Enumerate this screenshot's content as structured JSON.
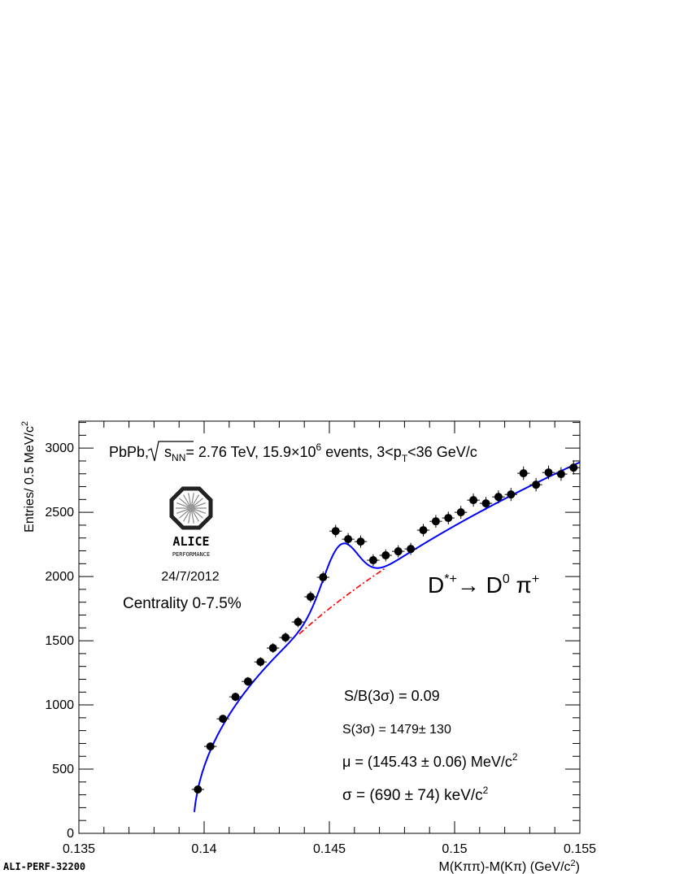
{
  "chart_data": {
    "type": "scatter",
    "xlabel": "M(Kππ)-M(Kπ) (GeV/c²)",
    "xlabel_parts": {
      "main": "M(Kππ)-M(Kπ) (GeV/c",
      "sup": "2",
      "end": ")"
    },
    "ylabel": "Entries/ 0.5 MeV/c²",
    "ylabel_parts": {
      "main": "Entries/ 0.5 MeV/c",
      "sup": "2"
    },
    "xlim": [
      0.135,
      0.155
    ],
    "ylim": [
      0,
      3210
    ],
    "x_ticks": [
      0.135,
      0.14,
      0.145,
      0.15,
      0.155
    ],
    "x_tick_labels": [
      "0.135",
      "0.14",
      "0.145",
      "0.15",
      "0.155"
    ],
    "y_ticks": [
      0,
      500,
      1000,
      1500,
      2000,
      2500,
      3000
    ],
    "y_tick_labels": [
      "0",
      "500",
      "1000",
      "1500",
      "2000",
      "2500",
      "3000"
    ],
    "grid": false,
    "series": [
      {
        "kind": "data-points",
        "color": "#000000",
        "x": [
          0.13975,
          0.14025,
          0.14075,
          0.14125,
          0.14175,
          0.14225,
          0.14275,
          0.14325,
          0.14375,
          0.14425,
          0.14475,
          0.14525,
          0.14575,
          0.14625,
          0.14675,
          0.14725,
          0.14775,
          0.14825,
          0.14875,
          0.14925,
          0.14975,
          0.15025,
          0.15075,
          0.15125,
          0.15175,
          0.15225,
          0.15275,
          0.15325,
          0.15375,
          0.15425,
          0.15475
        ],
        "y": [
          342,
          677,
          892,
          1063,
          1183,
          1335,
          1443,
          1525,
          1646,
          1842,
          1994,
          2354,
          2291,
          2272,
          2127,
          2165,
          2196,
          2215,
          2361,
          2430,
          2456,
          2500,
          2595,
          2570,
          2620,
          2639,
          2804,
          2715,
          2810,
          2798,
          2848
        ]
      },
      {
        "kind": "total-fit",
        "color": "#0000ff",
        "style": "solid"
      },
      {
        "kind": "background-fit",
        "color": "#ff0000",
        "style": "dash-dot"
      }
    ],
    "fit": {
      "mean_GeV": 0.14543,
      "sigma_GeV": 0.00069
    }
  },
  "annotations": {
    "title": {
      "pre": "PbPb, ",
      "sqrt_s": "s",
      "nn": "NN",
      "mid": "= 2.76 TeV, 15.9×10",
      "exp": "6",
      "post1": " events, 3<p",
      "sub_t": "T",
      "post2": "<36 GeV/c"
    },
    "logo": {
      "name": "ALICE",
      "sub": "PERFORMANCE"
    },
    "date": "24/7/2012",
    "centrality": "Centrality 0-7.5%",
    "decay": {
      "d": "D",
      "dsup": "*+",
      "arrow": "→ D",
      "d0sup": "0",
      "pi": " π",
      "pisup": "+"
    },
    "sb": "S/B(3σ) = 0.09",
    "signal": "S(3σ) = 1479± 130",
    "mu": {
      "main": "μ = (145.43 ± 0.06) MeV/c",
      "sup": "2"
    },
    "sigma": {
      "main": "σ = (690 ± 74) keV/c",
      "sup": "2"
    }
  },
  "footer": {
    "id": "ALI-PERF-32200"
  }
}
